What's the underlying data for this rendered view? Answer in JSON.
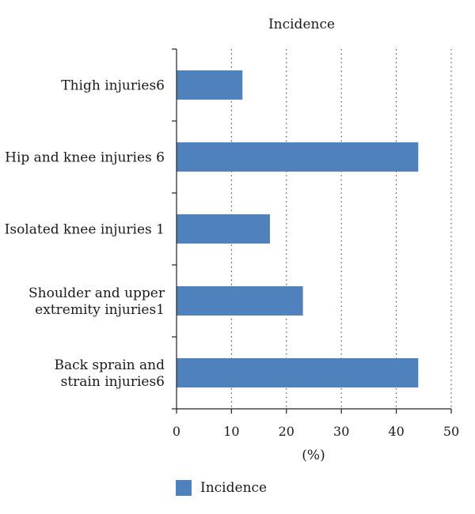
{
  "chart_data": {
    "type": "bar",
    "orientation": "horizontal",
    "title": "Incidence",
    "xlabel": "(%)",
    "xlim": [
      0,
      50
    ],
    "xticks": [
      0,
      10,
      20,
      30,
      40,
      50
    ],
    "grid": "vertical dotted",
    "legend_position": "bottom-left",
    "categories": [
      [
        "Thigh injuries6"
      ],
      [
        "Hip and knee injuries 6"
      ],
      [
        "Isolated knee injuries 1"
      ],
      [
        "Shoulder and upper",
        "extremity injuries1"
      ],
      [
        "Back sprain and",
        "strain injuries6"
      ]
    ],
    "series": [
      {
        "name": "Incidence",
        "color": "#4f81bd",
        "values": [
          12,
          44,
          17,
          23,
          44
        ]
      }
    ]
  }
}
